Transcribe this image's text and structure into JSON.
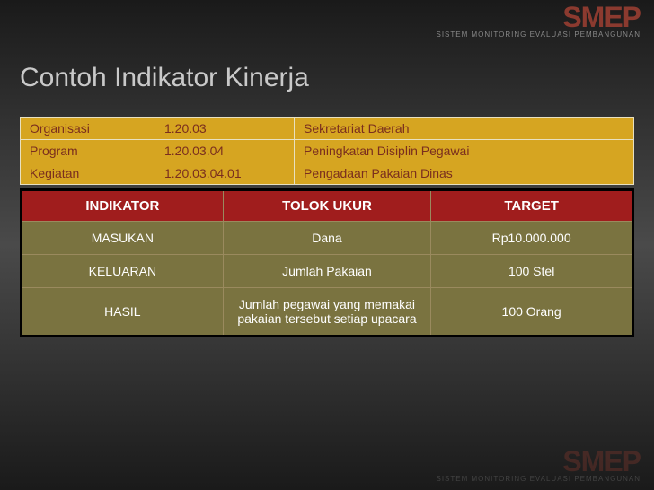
{
  "logo": {
    "main": "SMEP",
    "sub": "SISTEM MONITORING EVALUASI PEMBANGUNAN"
  },
  "title": "Contoh Indikator Kinerja",
  "org_table": {
    "rows": [
      {
        "label": "Organisasi",
        "code": "1.20.03",
        "desc": "Sekretariat Daerah"
      },
      {
        "label": "Program",
        "code": "1.20.03.04",
        "desc": "Peningkatan Disiplin Pegawai"
      },
      {
        "label": "Kegiatan",
        "code": "1.20.03.04.01",
        "desc": "Pengadaan Pakaian Dinas"
      }
    ]
  },
  "ind_table": {
    "headers": [
      "INDIKATOR",
      "TOLOK UKUR",
      "TARGET"
    ],
    "rows": [
      {
        "indikator": "MASUKAN",
        "tolok": "Dana",
        "target": "Rp10.000.000"
      },
      {
        "indikator": "KELUARAN",
        "tolok": "Jumlah Pakaian",
        "target": "100 Stel"
      },
      {
        "indikator": "HASIL",
        "tolok": "Jumlah pegawai yang memakai pakaian tersebut setiap upacara",
        "target": "100 Orang"
      }
    ]
  },
  "colors": {
    "title_color": "#c9c9c9",
    "org_bg": "#d6a521",
    "org_text": "#7a2e1e",
    "org_border": "#e8e0c0",
    "ind_header_bg": "#a01d1d",
    "ind_cell_bg": "#7a7340",
    "ind_text": "#ffffff",
    "ind_border": "#9a8a5e",
    "logo_color": "#8b3a2f"
  }
}
